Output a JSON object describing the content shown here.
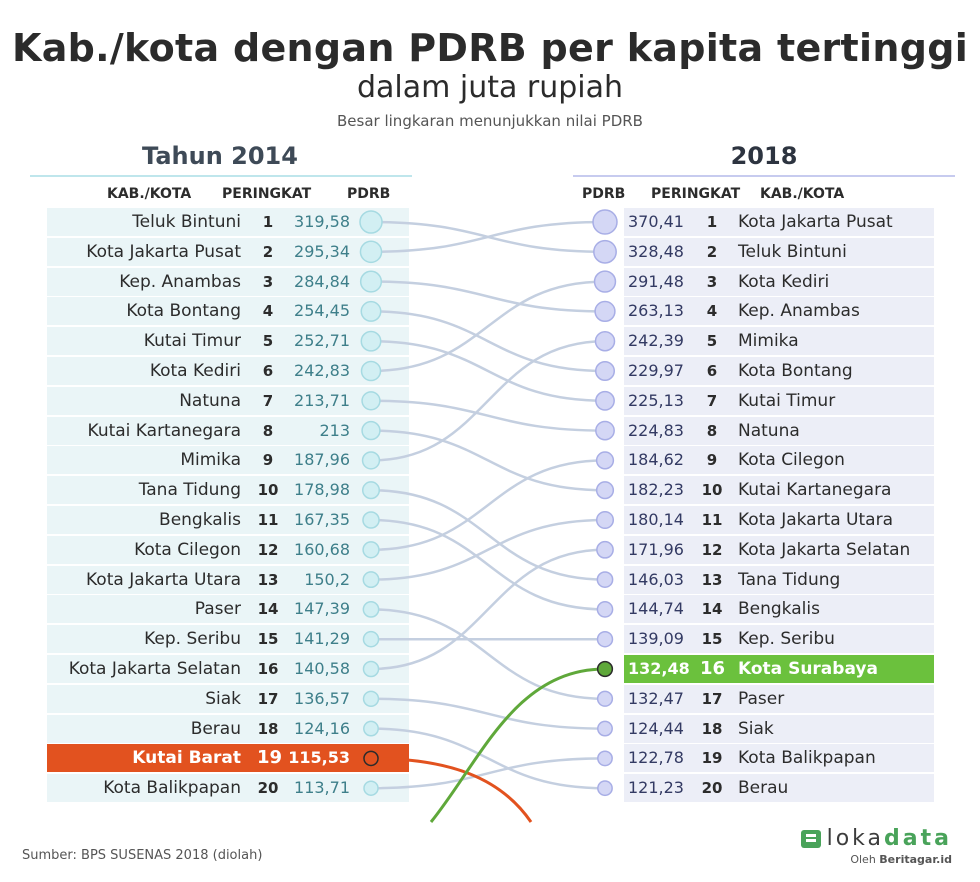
{
  "title": "Kab./kota dengan PDRB per kapita tertinggi",
  "subtitle": "dalam juta rupiah",
  "note": "Besar lingkaran menunjukkan nilai PDRB",
  "left_panel": {
    "year": "Tahun 2014",
    "headers": {
      "name": "KAB./KOTA",
      "rank": "PERINGKAT",
      "value": "PDRB"
    }
  },
  "right_panel": {
    "year": "2018",
    "headers": {
      "value": "PDRB",
      "rank": "PERINGKAT",
      "name": "KAB./KOTA"
    }
  },
  "source": "Sumber: BPS SUSENAS 2018 (diolah)",
  "logo": {
    "prefix": "loka",
    "suffix": "data",
    "by_prefix": "Oleh ",
    "by_name": "Beritagar.id"
  },
  "colors": {
    "left_node": "#d2eff3",
    "left_node_stroke": "#a6dae2",
    "right_node": "#d4d7f5",
    "right_node_stroke": "#a8aee6",
    "link": "#c4cfe0",
    "highlight_drop": "#e2521f",
    "highlight_rise": "#5fa83a"
  },
  "chart_data": {
    "type": "slope",
    "unit": "juta rupiah",
    "left": [
      {
        "name": "Teluk Bintuni",
        "rank": 1,
        "value": 319.58,
        "value_label": "319,58"
      },
      {
        "name": "Kota Jakarta Pusat",
        "rank": 2,
        "value": 295.34,
        "value_label": "295,34"
      },
      {
        "name": "Kep. Anambas",
        "rank": 3,
        "value": 284.84,
        "value_label": "284,84"
      },
      {
        "name": "Kota Bontang",
        "rank": 4,
        "value": 254.45,
        "value_label": "254,45"
      },
      {
        "name": "Kutai Timur",
        "rank": 5,
        "value": 252.71,
        "value_label": "252,71"
      },
      {
        "name": "Kota Kediri",
        "rank": 6,
        "value": 242.83,
        "value_label": "242,83"
      },
      {
        "name": "Natuna",
        "rank": 7,
        "value": 213.71,
        "value_label": "213,71"
      },
      {
        "name": "Kutai Kartanegara",
        "rank": 8,
        "value": 213,
        "value_label": "213"
      },
      {
        "name": "Mimika",
        "rank": 9,
        "value": 187.96,
        "value_label": "187,96"
      },
      {
        "name": "Tana Tidung",
        "rank": 10,
        "value": 178.98,
        "value_label": "178,98"
      },
      {
        "name": "Bengkalis",
        "rank": 11,
        "value": 167.35,
        "value_label": "167,35"
      },
      {
        "name": "Kota Cilegon",
        "rank": 12,
        "value": 160.68,
        "value_label": "160,68"
      },
      {
        "name": "Kota Jakarta Utara",
        "rank": 13,
        "value": 150.2,
        "value_label": "150,2"
      },
      {
        "name": "Paser",
        "rank": 14,
        "value": 147.39,
        "value_label": "147,39"
      },
      {
        "name": "Kep. Seribu",
        "rank": 15,
        "value": 141.29,
        "value_label": "141,29"
      },
      {
        "name": "Kota Jakarta Selatan",
        "rank": 16,
        "value": 140.58,
        "value_label": "140,58"
      },
      {
        "name": "Siak",
        "rank": 17,
        "value": 136.57,
        "value_label": "136,57"
      },
      {
        "name": "Berau",
        "rank": 18,
        "value": 124.16,
        "value_label": "124,16"
      },
      {
        "name": "Kutai Barat",
        "rank": 19,
        "value": 115.53,
        "value_label": "115,53",
        "highlight": true
      },
      {
        "name": "Kota Balikpapan",
        "rank": 20,
        "value": 113.71,
        "value_label": "113,71"
      }
    ],
    "right": [
      {
        "name": "Kota Jakarta Pusat",
        "rank": 1,
        "value": 370.41,
        "value_label": "370,41"
      },
      {
        "name": "Teluk Bintuni",
        "rank": 2,
        "value": 328.48,
        "value_label": "328,48"
      },
      {
        "name": "Kota Kediri",
        "rank": 3,
        "value": 291.48,
        "value_label": "291,48"
      },
      {
        "name": "Kep. Anambas",
        "rank": 4,
        "value": 263.13,
        "value_label": "263,13"
      },
      {
        "name": "Mimika",
        "rank": 5,
        "value": 242.39,
        "value_label": "242,39"
      },
      {
        "name": "Kota Bontang",
        "rank": 6,
        "value": 229.97,
        "value_label": "229,97"
      },
      {
        "name": "Kutai Timur",
        "rank": 7,
        "value": 225.13,
        "value_label": "225,13"
      },
      {
        "name": "Natuna",
        "rank": 8,
        "value": 224.83,
        "value_label": "224,83"
      },
      {
        "name": "Kota Cilegon",
        "rank": 9,
        "value": 184.62,
        "value_label": "184,62"
      },
      {
        "name": "Kutai Kartanegara",
        "rank": 10,
        "value": 182.23,
        "value_label": "182,23"
      },
      {
        "name": "Kota Jakarta Utara",
        "rank": 11,
        "value": 180.14,
        "value_label": "180,14"
      },
      {
        "name": "Kota Jakarta Selatan",
        "rank": 12,
        "value": 171.96,
        "value_label": "171,96"
      },
      {
        "name": "Tana Tidung",
        "rank": 13,
        "value": 146.03,
        "value_label": "146,03"
      },
      {
        "name": "Bengkalis",
        "rank": 14,
        "value": 144.74,
        "value_label": "144,74"
      },
      {
        "name": "Kep. Seribu",
        "rank": 15,
        "value": 139.09,
        "value_label": "139,09"
      },
      {
        "name": "Kota Surabaya",
        "rank": 16,
        "value": 132.48,
        "value_label": "132,48",
        "highlight": true
      },
      {
        "name": "Paser",
        "rank": 17,
        "value": 132.47,
        "value_label": "132,47"
      },
      {
        "name": "Siak",
        "rank": 18,
        "value": 124.44,
        "value_label": "124,44"
      },
      {
        "name": "Kota Balikpapan",
        "rank": 19,
        "value": 122.78,
        "value_label": "122,78"
      },
      {
        "name": "Berau",
        "rank": 20,
        "value": 121.23,
        "value_label": "121,23"
      }
    ]
  }
}
